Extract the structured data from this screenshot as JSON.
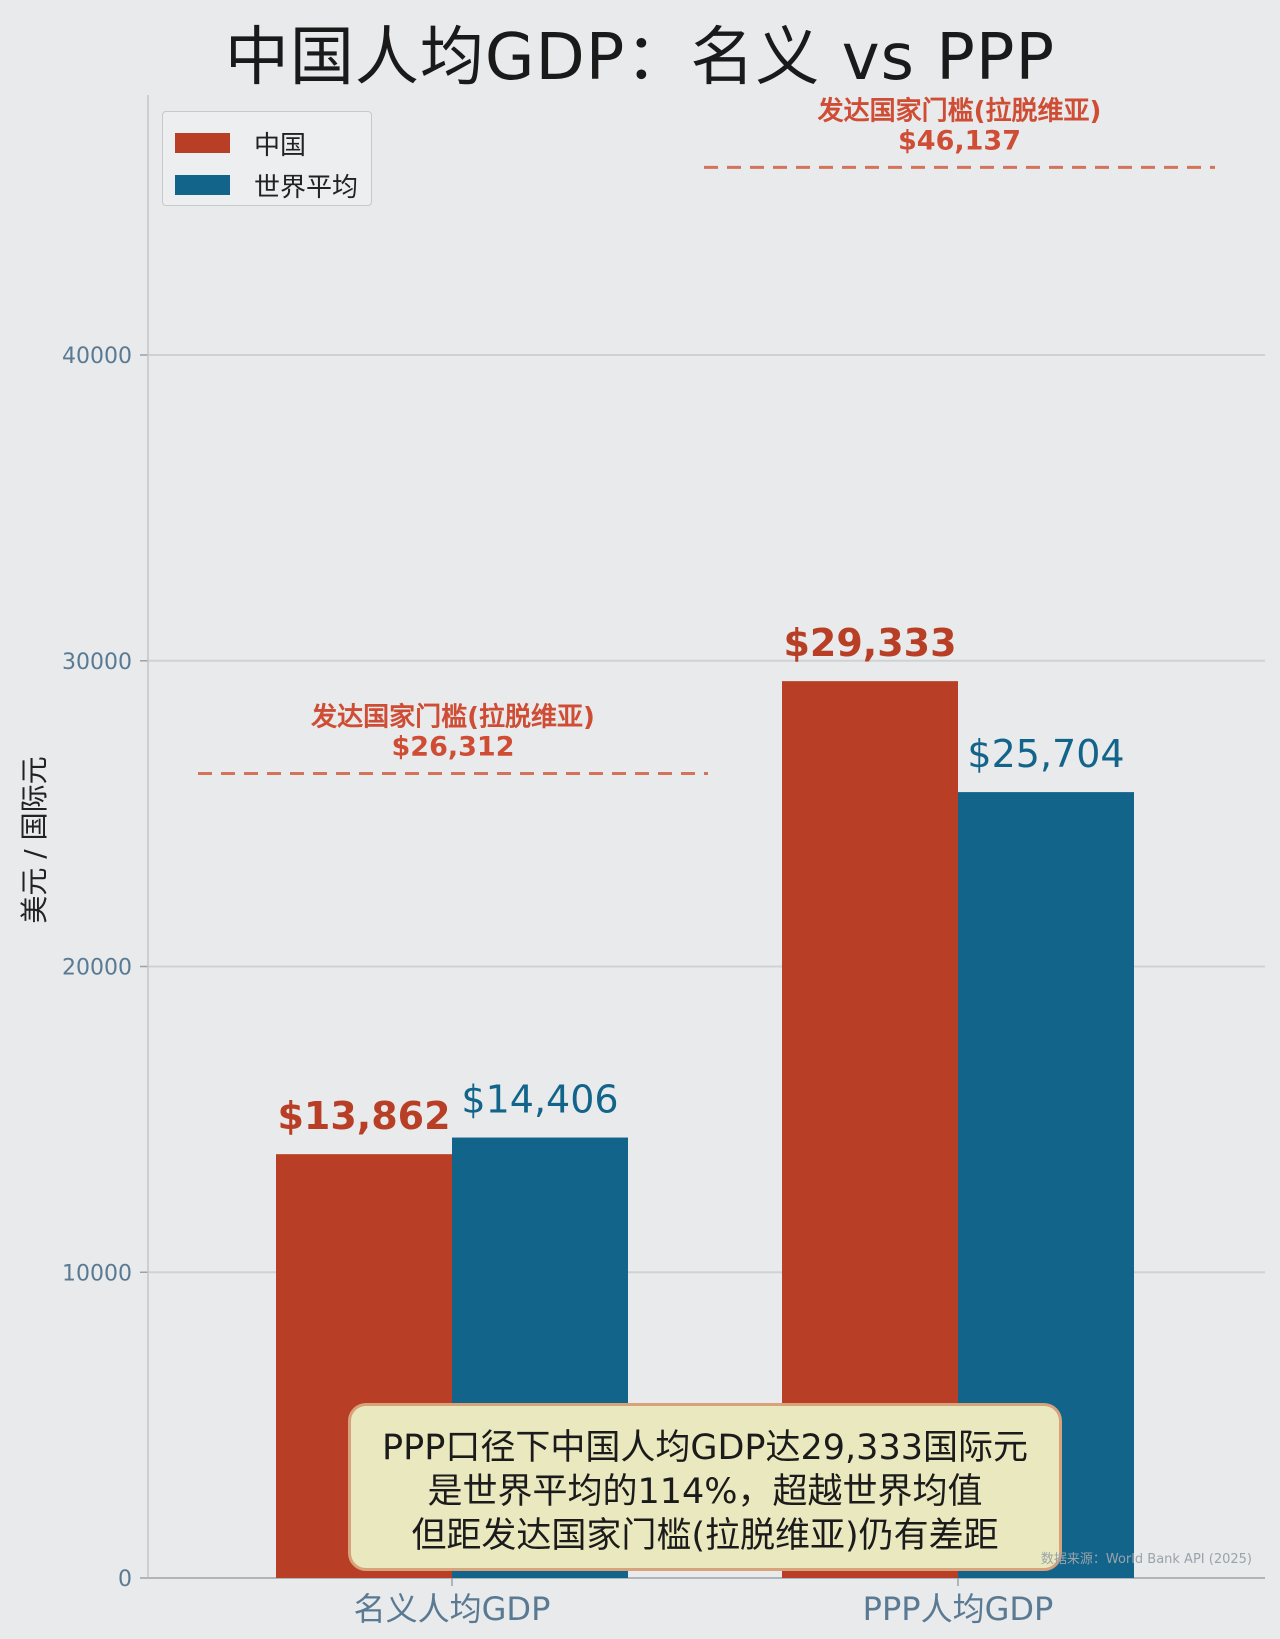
{
  "chart_data": {
    "type": "bar",
    "title": "中国人均GDP：名义 vs PPP",
    "ylabel": "美元 / 国际元",
    "categories": [
      "名义人均GDP",
      "PPP人均GDP"
    ],
    "series": [
      {
        "name": "中国",
        "values": [
          13862,
          29333
        ],
        "labels": [
          "$13,862",
          "$29,333"
        ],
        "color": "#b83f26"
      },
      {
        "name": "世界平均",
        "values": [
          14406,
          25704
        ],
        "labels": [
          "$14,406",
          "$25,704"
        ],
        "color": "#12648a"
      }
    ],
    "ylim": [
      0,
      48000
    ],
    "yticks": [
      0,
      10000,
      20000,
      30000,
      40000
    ],
    "grid": true,
    "legend_position": "top-left",
    "reference_lines": [
      {
        "category": "名义人均GDP",
        "value": 26312,
        "label": "发达国家门槛(拉脱维亚)",
        "value_label": "$26,312"
      },
      {
        "category": "PPP人均GDP",
        "value": 46137,
        "label": "发达国家门槛(拉脱维亚)",
        "value_label": "$46,137"
      }
    ],
    "annotation": [
      "PPP口径下中国人均GDP达29,333国际元",
      "是世界平均的114%，超越世界均值",
      "但距发达国家门槛(拉脱维亚)仍有差距"
    ],
    "source": "数据来源：World Bank API (2025)"
  },
  "colors": {
    "china": "#b83f26",
    "world": "#12648a",
    "threshold": "#d4735a",
    "threshold_text": "#cf4d35",
    "axis_text": "#5a7a94",
    "grid": "#cfd2d4"
  }
}
